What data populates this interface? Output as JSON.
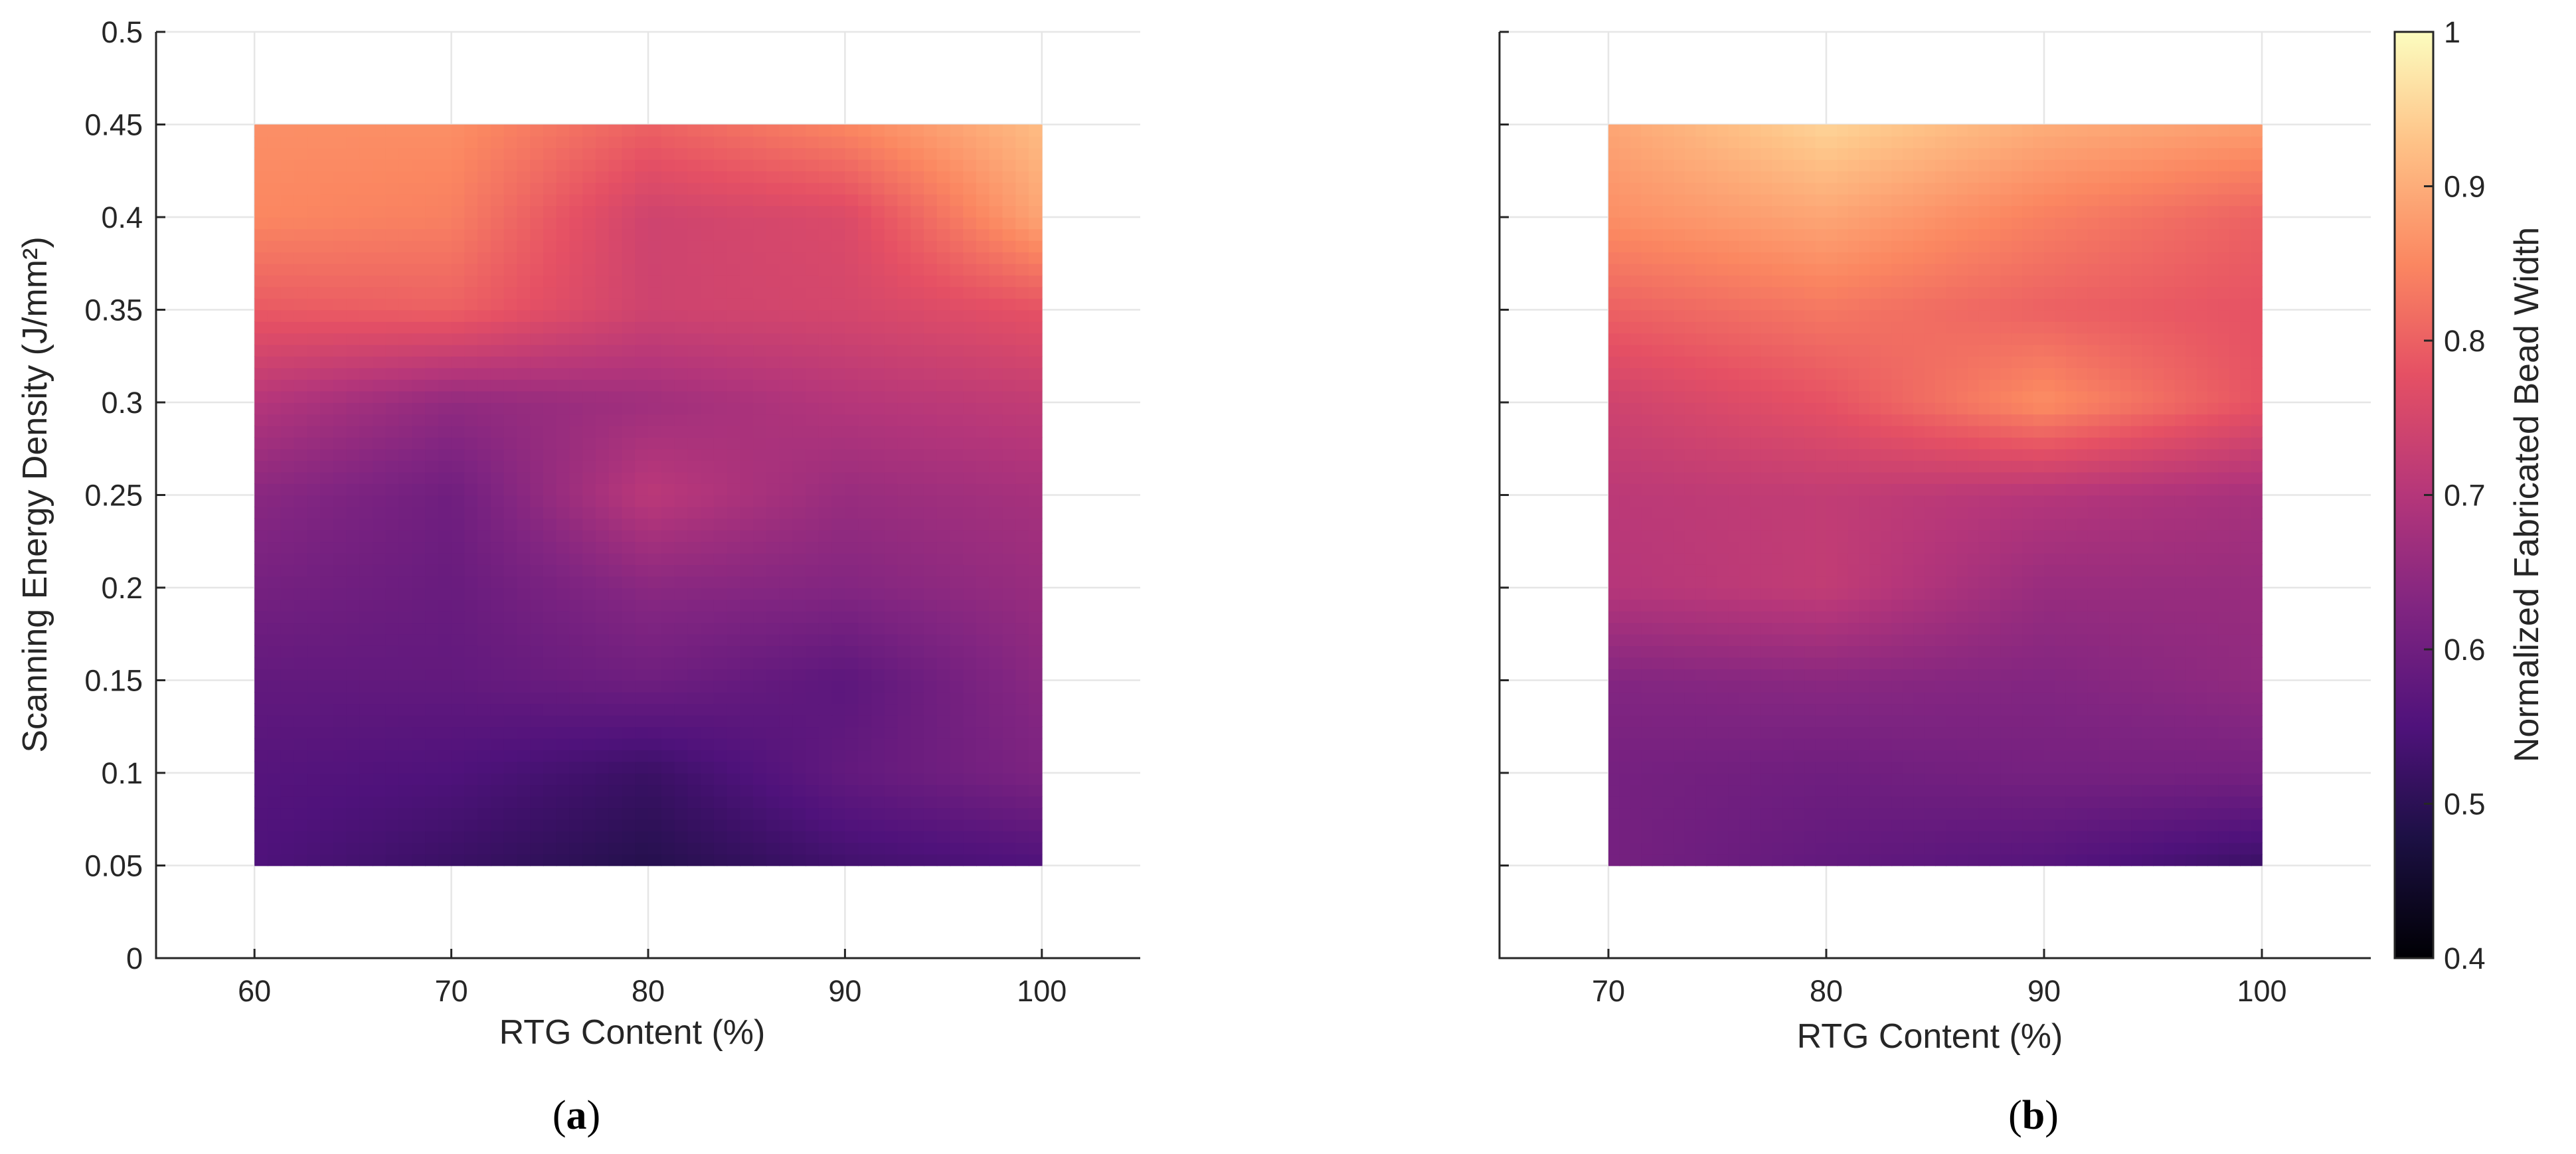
{
  "figure": {
    "panel_a_label": "a",
    "panel_b_label": "b"
  },
  "colorbar": {
    "label": "Normalized Fabricated Bead Width",
    "ticks": [
      "0.4",
      "0.5",
      "0.6",
      "0.7",
      "0.8",
      "0.9",
      "1"
    ],
    "colormap": "magma"
  },
  "chart_data": [
    {
      "type": "heatmap",
      "panel": "a",
      "xlabel": "RTG Content (%)",
      "ylabel": "Scanning Energy Density (J/mm²)",
      "xlim": [
        55,
        105
      ],
      "ylim": [
        0,
        0.5
      ],
      "xticks": [
        "60",
        "70",
        "80",
        "90",
        "100"
      ],
      "yticks": [
        "0",
        "0.05",
        "0.1",
        "0.15",
        "0.2",
        "0.25",
        "0.3",
        "0.35",
        "0.4",
        "0.45",
        "0.5"
      ],
      "grid": true,
      "clim": [
        0.4,
        1.0
      ],
      "x": [
        60,
        70,
        80,
        90,
        100
      ],
      "y": [
        0.05,
        0.1,
        0.15,
        0.2,
        0.25,
        0.3,
        0.35,
        0.4,
        0.45
      ],
      "z": [
        [
          0.55,
          0.52,
          0.49,
          0.53,
          0.55
        ],
        [
          0.56,
          0.55,
          0.52,
          0.58,
          0.62
        ],
        [
          0.58,
          0.58,
          0.6,
          0.57,
          0.64
        ],
        [
          0.61,
          0.59,
          0.64,
          0.63,
          0.66
        ],
        [
          0.64,
          0.6,
          0.71,
          0.66,
          0.68
        ],
        [
          0.7,
          0.65,
          0.67,
          0.7,
          0.72
        ],
        [
          0.79,
          0.8,
          0.74,
          0.75,
          0.78
        ],
        [
          0.85,
          0.84,
          0.74,
          0.76,
          0.89
        ],
        [
          0.86,
          0.86,
          0.8,
          0.85,
          0.92
        ]
      ]
    },
    {
      "type": "heatmap",
      "panel": "b",
      "xlabel": "RTG Content (%)",
      "ylabel": "",
      "xlim": [
        65,
        105
      ],
      "ylim": [
        0,
        0.5
      ],
      "xticks": [
        "70",
        "80",
        "90",
        "100"
      ],
      "yticks": [],
      "grid": true,
      "clim": [
        0.4,
        1.0
      ],
      "x": [
        70,
        80,
        90,
        100
      ],
      "y": [
        0.05,
        0.1,
        0.15,
        0.2,
        0.25,
        0.3,
        0.35,
        0.4,
        0.45
      ],
      "z": [
        [
          0.61,
          0.58,
          0.56,
          0.52
        ],
        [
          0.61,
          0.6,
          0.61,
          0.61
        ],
        [
          0.63,
          0.64,
          0.63,
          0.65
        ],
        [
          0.7,
          0.72,
          0.66,
          0.66
        ],
        [
          0.71,
          0.72,
          0.7,
          0.68
        ],
        [
          0.74,
          0.78,
          0.86,
          0.78
        ],
        [
          0.8,
          0.83,
          0.8,
          0.78
        ],
        [
          0.86,
          0.89,
          0.84,
          0.8
        ],
        [
          0.89,
          0.95,
          0.9,
          0.88
        ]
      ]
    }
  ]
}
